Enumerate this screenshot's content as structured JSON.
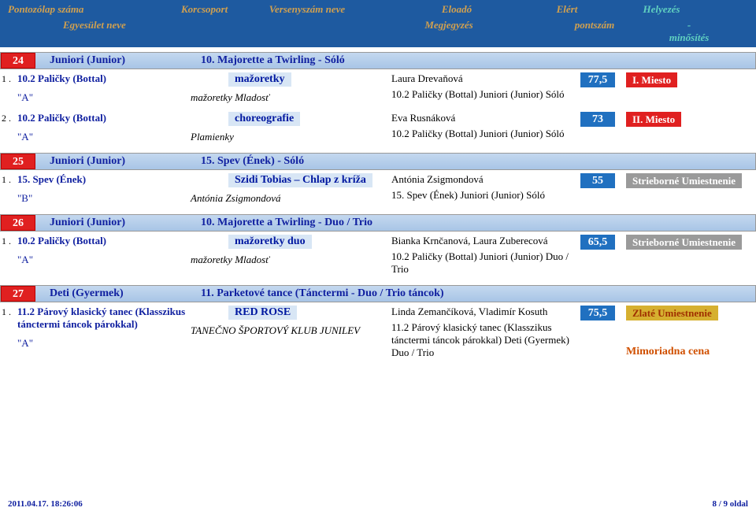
{
  "header": {
    "r1c1": "Pontozólap száma",
    "r1c2": "Korcsoport",
    "r1c3": "Versenyszám neve",
    "r1c4": "Eloadó",
    "r1c5": "Elért",
    "r1c6": "Helyezés",
    "r2c1": "Egyesület neve",
    "r2c2": "Megjegyzés",
    "r2c3": "pontszám",
    "r2c4": "-",
    "r2c5": "minősítés"
  },
  "groups": [
    {
      "num": "24",
      "cat": "Juniori (Junior)",
      "title": "10. Majorette a Twirling - Sóló",
      "entries": [
        {
          "idx": "1 .",
          "name": "10.2 Paličky (Bottal)",
          "grade": "\"A\"",
          "routine": "mažoretky",
          "club": "mažoretky Mladosť",
          "perf": "Laura Drevaňová",
          "detail": "10.2 Paličky (Bottal)  Juniori (Junior)  Sóló",
          "score": "77,5",
          "place": "I. Miesto",
          "placeCls": "bg-red"
        },
        {
          "idx": "2 .",
          "name": "10.2 Paličky (Bottal)",
          "grade": "\"A\"",
          "routine": "choreografie",
          "club": "Plamienky",
          "perf": "Eva Rusnáková",
          "detail": "10.2 Paličky (Bottal)  Juniori (Junior)  Sóló",
          "score": "73",
          "place": "II. Miesto",
          "placeCls": "bg-red"
        }
      ]
    },
    {
      "num": "25",
      "cat": "Juniori (Junior)",
      "title": "15. Spev (Ének) - Sóló",
      "entries": [
        {
          "idx": "1 .",
          "name": "15. Spev (Ének)",
          "grade": "\"B\"",
          "routine": "Szidi Tobias – Chlap z kríža",
          "club": "Antónia Zsigmondová",
          "perf": "Antónia Zsigmondová",
          "detail": "15. Spev (Ének)  Juniori (Junior)  Sóló",
          "score": "55",
          "place": "Strieborné Umiestnenie",
          "placeCls": "bg-silver"
        }
      ]
    },
    {
      "num": "26",
      "cat": "Juniori (Junior)",
      "title": "10. Majorette a Twirling - Duo / Trio",
      "entries": [
        {
          "idx": "1 .",
          "name": "10.2 Paličky (Bottal)",
          "grade": "\"A\"",
          "routine": "mažoretky duo",
          "club": "mažoretky Mladosť",
          "perf": "Bianka Krnčanová, Laura Zuberecová",
          "detail": "10.2 Paličky (Bottal)  Juniori (Junior)  Duo / Trio",
          "score": "65,5",
          "place": "Strieborné Umiestnenie",
          "placeCls": "bg-silver"
        }
      ]
    },
    {
      "num": "27",
      "cat": "Deti (Gyermek)",
      "title": "11. Parketové tance (Tánctermi - Duo / Trio táncok)",
      "entries": [
        {
          "idx": "1 .",
          "name": "11.2 Párový klasický tanec (Klasszikus tánctermi táncok párokkal)",
          "grade": "\"A\"",
          "routine": "RED ROSE",
          "club": "TANEČNO ŠPORTOVÝ KLUB JUNILEV",
          "perf": "Linda Zemančíková, Vladimír Kosuth",
          "detail": "11.2 Párový klasický tanec (Klasszikus tánctermi táncok párokkal)  Deti (Gyermek)  Duo / Trio",
          "score": "75,5",
          "place": "Zlaté Umiestnenie",
          "placeCls": "bg-gold",
          "extra": "Mimoriadna cena"
        }
      ]
    }
  ],
  "footer": {
    "left": "2011.04.17.  18:26:06",
    "right": "8 / 9 oldal"
  }
}
